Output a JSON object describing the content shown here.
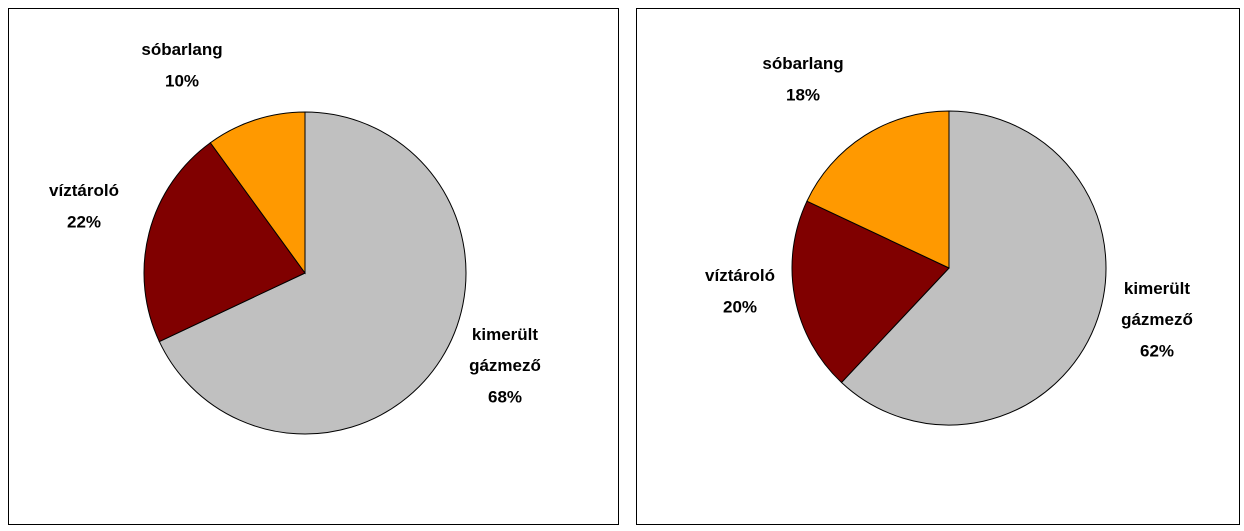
{
  "chart_data": [
    {
      "type": "pie",
      "categories": [
        "kimerült gázmező",
        "víztároló",
        "sóbarlang"
      ],
      "values": [
        68,
        22,
        10
      ],
      "value_labels": [
        "68%",
        "22%",
        "10%"
      ],
      "colors": [
        "#c0c0c0",
        "#800000",
        "#ff9900"
      ]
    },
    {
      "type": "pie",
      "categories": [
        "kimerült gázmező",
        "víztároló",
        "sóbarlang"
      ],
      "values": [
        62,
        20,
        18
      ],
      "value_labels": [
        "62%",
        "20%",
        "18%"
      ],
      "colors": [
        "#c0c0c0",
        "#800000",
        "#ff9900"
      ]
    }
  ]
}
